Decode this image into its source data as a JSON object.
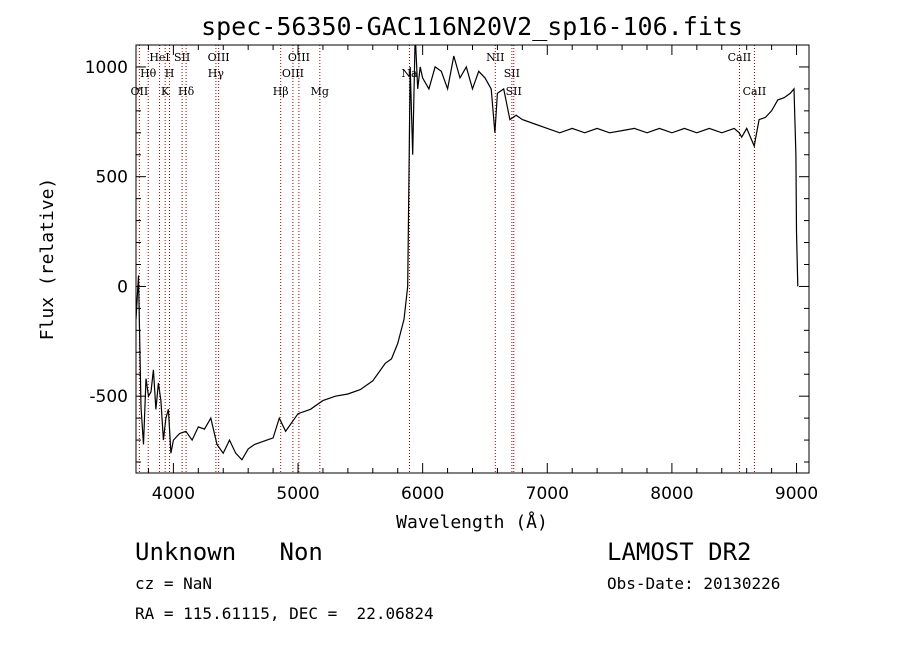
{
  "chart_data": {
    "type": "line",
    "title": "spec-56350-GAC116N20V2_sp16-106.fits",
    "xlabel": "Wavelength (Å)",
    "ylabel": "Flux (relative)",
    "xlim": [
      3700,
      9100
    ],
    "ylim": [
      -850,
      1100
    ],
    "x_ticks": [
      4000,
      5000,
      6000,
      7000,
      8000,
      9000
    ],
    "y_ticks": [
      -500,
      0,
      500,
      1000
    ],
    "grid": false,
    "spectrum_color": "#000000",
    "line_marker_color": "#a00000",
    "lines": [
      {
        "label": "OII",
        "wavelength": 3727,
        "row": 3
      },
      {
        "label": "Hθ",
        "wavelength": 3798,
        "row": 2
      },
      {
        "label": "HeI",
        "wavelength": 3889,
        "row": 1
      },
      {
        "label": "K",
        "wavelength": 3934,
        "row": 3
      },
      {
        "label": "H",
        "wavelength": 3969,
        "row": 2
      },
      {
        "label": "SII",
        "wavelength": 4070,
        "row": 1
      },
      {
        "label": "Hδ",
        "wavelength": 4102,
        "row": 3
      },
      {
        "label": "OIII",
        "wavelength": 4363,
        "row": 1
      },
      {
        "label": "Hγ",
        "wavelength": 4341,
        "row": 2
      },
      {
        "label": "Hβ",
        "wavelength": 4861,
        "row": 3
      },
      {
        "label": "OIII",
        "wavelength": 4959,
        "row": 2
      },
      {
        "label": "OIII",
        "wavelength": 5007,
        "row": 1
      },
      {
        "label": "Mg",
        "wavelength": 5175,
        "row": 3
      },
      {
        "label": "Na",
        "wavelength": 5894,
        "row": 2
      },
      {
        "label": "NII",
        "wavelength": 6583,
        "row": 1
      },
      {
        "label": "SII",
        "wavelength": 6716,
        "row": 2
      },
      {
        "label": "SII",
        "wavelength": 6731,
        "row": 3
      },
      {
        "label": "CaII",
        "wavelength": 8542,
        "row": 1
      },
      {
        "label": "CaII",
        "wavelength": 8662,
        "row": 3
      }
    ],
    "series": [
      {
        "x": [
          3700,
          3720,
          3740,
          3760,
          3780,
          3800,
          3820,
          3840,
          3860,
          3880,
          3900,
          3920,
          3940,
          3960,
          3980,
          4000,
          4050,
          4100,
          4150,
          4200,
          4250,
          4300,
          4350,
          4400,
          4450,
          4500,
          4550,
          4600,
          4650,
          4700,
          4750,
          4800,
          4850,
          4900,
          4950,
          5000,
          5100,
          5200,
          5300,
          5400,
          5500,
          5600,
          5700,
          5750,
          5800,
          5850,
          5880,
          5900,
          5920,
          5940,
          5960,
          5980,
          6000,
          6050,
          6100,
          6150,
          6200,
          6250,
          6300,
          6350,
          6400,
          6450,
          6500,
          6550,
          6580,
          6600,
          6650,
          6700,
          6750,
          6800,
          6900,
          7000,
          7100,
          7200,
          7300,
          7400,
          7500,
          7600,
          7700,
          7800,
          7900,
          8000,
          8100,
          8200,
          8300,
          8400,
          8500,
          8540,
          8560,
          8600,
          8660,
          8700,
          8750,
          8800,
          8850,
          8900,
          8950,
          8980,
          8995,
          9000,
          9010
        ],
        "y": [
          -150,
          50,
          -550,
          -720,
          -420,
          -500,
          -480,
          -380,
          -560,
          -440,
          -520,
          -700,
          -600,
          -560,
          -760,
          -700,
          -670,
          -660,
          -700,
          -640,
          -650,
          -600,
          -720,
          -760,
          -700,
          -760,
          -790,
          -740,
          -720,
          -710,
          -700,
          -690,
          -600,
          -660,
          -620,
          -580,
          -560,
          -520,
          -500,
          -490,
          -470,
          -430,
          -350,
          -330,
          -260,
          -150,
          0,
          1000,
          600,
          1150,
          900,
          1000,
          950,
          900,
          1000,
          980,
          900,
          1050,
          950,
          1000,
          900,
          980,
          950,
          900,
          700,
          880,
          900,
          760,
          780,
          760,
          740,
          720,
          700,
          720,
          700,
          720,
          700,
          710,
          720,
          700,
          720,
          700,
          720,
          700,
          720,
          700,
          720,
          700,
          680,
          720,
          640,
          760,
          770,
          800,
          850,
          860,
          880,
          900,
          600,
          250,
          0
        ]
      }
    ]
  },
  "info": {
    "class_text": "Unknown   Non",
    "cz_text": "cz = NaN",
    "radec_text": "RA = 115.61115, DEC =  22.06824",
    "survey_text": "LAMOST DR2",
    "obsdate_text": "Obs-Date: 20130226"
  }
}
